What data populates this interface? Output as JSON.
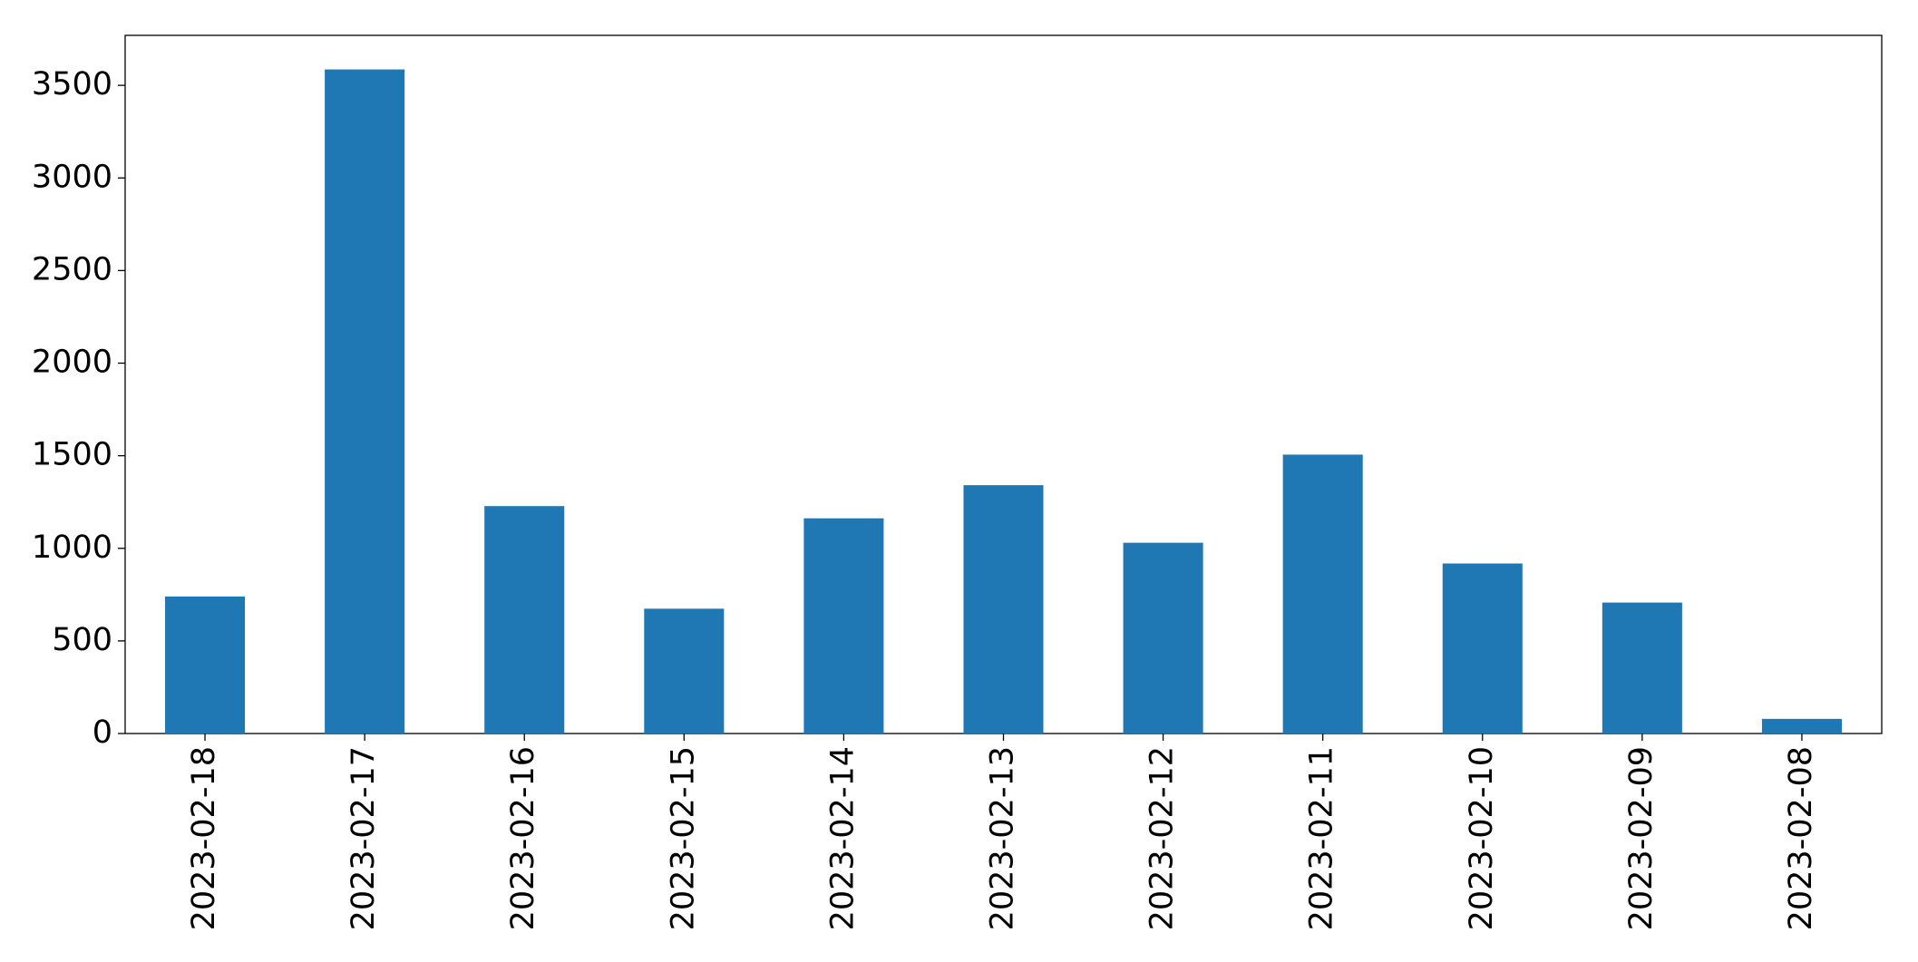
{
  "chart_data": {
    "type": "bar",
    "categories": [
      "2023-02-18",
      "2023-02-17",
      "2023-02-16",
      "2023-02-15",
      "2023-02-14",
      "2023-02-13",
      "2023-02-12",
      "2023-02-11",
      "2023-02-10",
      "2023-02-09",
      "2023-02-08"
    ],
    "values": [
      740,
      3586,
      1228,
      674,
      1162,
      1341,
      1030,
      1506,
      918,
      707,
      79
    ],
    "color": "#1f77b4",
    "ylim": [
      0,
      3770
    ],
    "yticks": [
      0,
      500,
      1000,
      1500,
      2000,
      2500,
      3000,
      3500
    ],
    "grid": false
  }
}
